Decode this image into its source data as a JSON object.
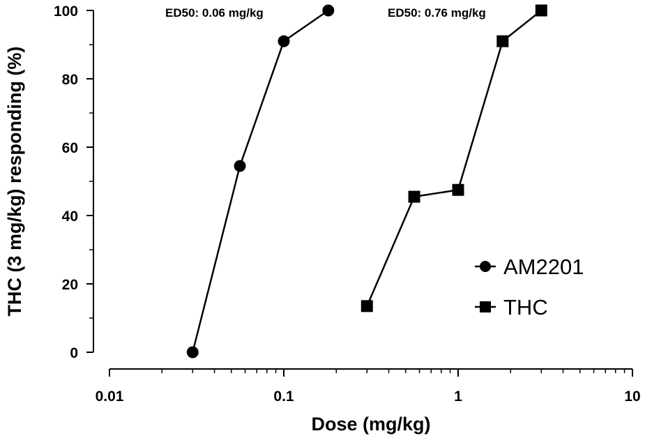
{
  "chart_data": {
    "type": "line",
    "xscale": "log",
    "xlim": [
      0.01,
      10
    ],
    "ylim": [
      0,
      100
    ],
    "xlabel": "Dose (mg/kg)",
    "ylabel": "THC (3 mg/kg) responding (%)",
    "x_ticks": [
      0.01,
      0.1,
      1,
      10
    ],
    "x_tick_labels": [
      "0.01",
      "0.1",
      "1",
      "10"
    ],
    "y_ticks": [
      0,
      20,
      40,
      60,
      80,
      100
    ],
    "y_tick_labels": [
      "0",
      "20",
      "40",
      "60",
      "80",
      "100"
    ],
    "grid": false,
    "legend_position": "right",
    "series": [
      {
        "name": "AM2201",
        "marker": "circle",
        "color": "#000000",
        "x": [
          0.03,
          0.056,
          0.1,
          0.18
        ],
        "y": [
          0,
          54.5,
          91,
          100
        ]
      },
      {
        "name": "THC",
        "marker": "square",
        "color": "#000000",
        "x": [
          0.3,
          0.56,
          1,
          1.8,
          3
        ],
        "y": [
          13.5,
          45.5,
          47.5,
          91,
          100
        ]
      }
    ],
    "annotations": [
      {
        "text": "ED50: 0.06 mg/kg"
      },
      {
        "text": "ED50: 0.76 mg/kg"
      }
    ]
  }
}
